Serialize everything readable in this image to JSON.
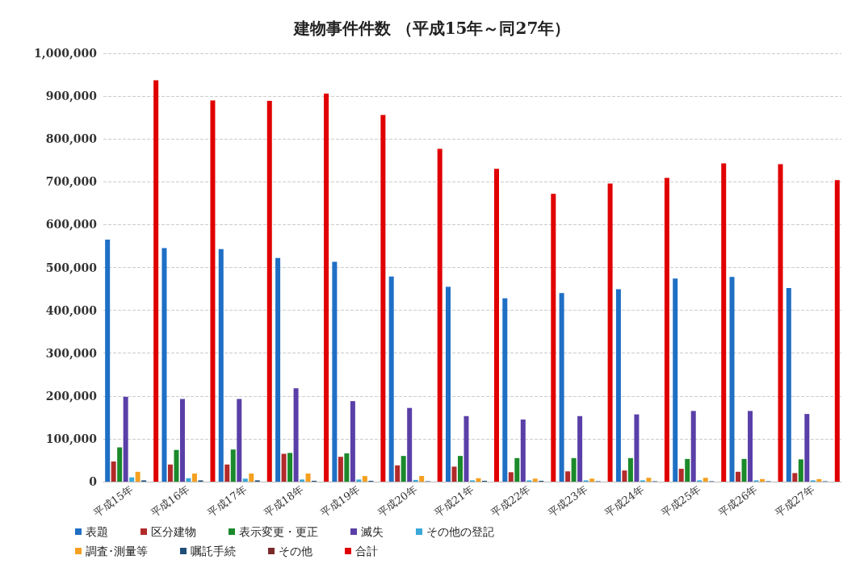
{
  "chart_data": {
    "type": "bar",
    "title": "建物事件件数 （平成15年～同27年）",
    "categories": [
      "平成15年",
      "平成16年",
      "平成17年",
      "平成18年",
      "平成19年",
      "平成20年",
      "平成21年",
      "平成22年",
      "平成23年",
      "平成24年",
      "平成25年",
      "平成26年",
      "平成27年"
    ],
    "series": [
      {
        "name": "表題",
        "color": "#1f6fc5",
        "values": [
          565000,
          545000,
          543000,
          522000,
          513000,
          479000,
          455000,
          428000,
          440000,
          449000,
          474000,
          478000,
          452000
        ]
      },
      {
        "name": "区分建物",
        "color": "#b22a2a",
        "values": [
          47000,
          40000,
          40000,
          65000,
          58000,
          38000,
          35000,
          22000,
          24000,
          26000,
          30000,
          23000,
          20000
        ]
      },
      {
        "name": "表示変更・更正",
        "color": "#1a8a2a",
        "values": [
          80000,
          74000,
          75000,
          67000,
          66000,
          60000,
          60000,
          55000,
          55000,
          55000,
          53000,
          53000,
          52000
        ]
      },
      {
        "name": "滅失",
        "color": "#5a3fa8",
        "values": [
          198000,
          193000,
          193000,
          218000,
          188000,
          172000,
          153000,
          145000,
          153000,
          157000,
          165000,
          165000,
          158000
        ]
      },
      {
        "name": "その他の登記",
        "color": "#3aa8d8",
        "values": [
          10000,
          8000,
          7000,
          5000,
          5000,
          4000,
          3000,
          3000,
          3000,
          3000,
          3000,
          3000,
          3000
        ]
      },
      {
        "name": "調査･測量等",
        "color": "#f5a020",
        "values": [
          23000,
          19000,
          19000,
          19000,
          13000,
          13000,
          8000,
          7000,
          7000,
          9000,
          9000,
          6000,
          6000
        ]
      },
      {
        "name": "嘱託手続",
        "color": "#1f4e79",
        "values": [
          3000,
          3000,
          3000,
          2000,
          2000,
          1000,
          2000,
          2000,
          1000,
          1000,
          1000,
          1000,
          1000
        ]
      },
      {
        "name": "その他",
        "color": "#7a2a2a",
        "values": [
          0,
          0,
          0,
          0,
          0,
          0,
          0,
          0,
          0,
          0,
          0,
          0,
          0
        ]
      },
      {
        "name": "合計",
        "color": "#e00000",
        "values": [
          937000,
          890000,
          889000,
          906000,
          856000,
          777000,
          730000,
          672000,
          696000,
          709000,
          743000,
          741000,
          704000
        ]
      }
    ],
    "ylim": [
      0,
      1000000
    ],
    "yticks": [
      {
        "value": 0,
        "label": "0"
      },
      {
        "value": 100000,
        "label": "100,000"
      },
      {
        "value": 200000,
        "label": "200,000"
      },
      {
        "value": 300000,
        "label": "300,000"
      },
      {
        "value": 400000,
        "label": "400,000"
      },
      {
        "value": 500000,
        "label": "500,000"
      },
      {
        "value": 600000,
        "label": "600,000"
      },
      {
        "value": 700000,
        "label": "700,000"
      },
      {
        "value": 800000,
        "label": "800,000"
      },
      {
        "value": 900000,
        "label": "900,000"
      },
      {
        "value": 1000000,
        "label": "1,000,000"
      }
    ],
    "grid": "y",
    "legend": "bottom"
  }
}
